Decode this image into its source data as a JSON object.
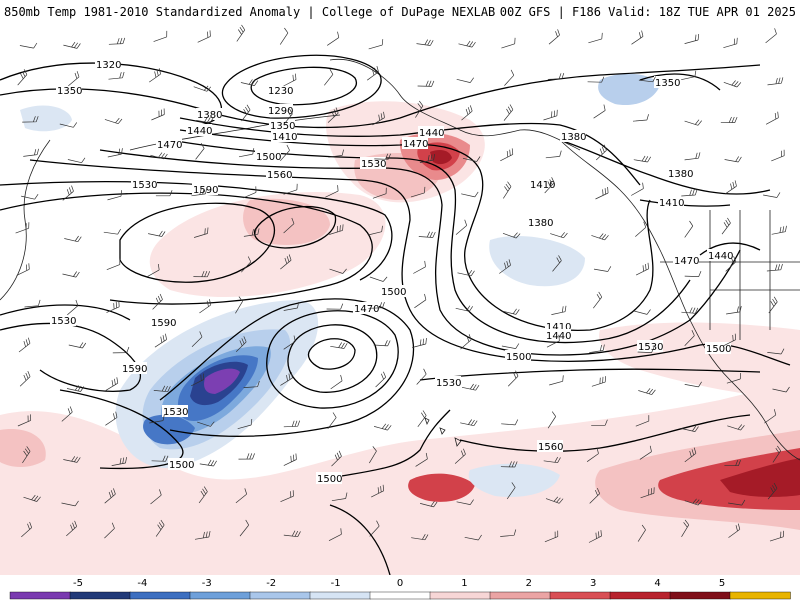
{
  "header": {
    "title": "850mb Temp 1981-2010 Standardized Anomaly | College of DuPage NEXLAB",
    "run": "00Z GFS | F186 Valid: 18Z TUE APR 01 2025"
  },
  "contour_labels": [
    "1230",
    "1290",
    "1320",
    "1350",
    "1350",
    "1350",
    "1380",
    "1380",
    "1380",
    "1380",
    "1410",
    "1410",
    "1410",
    "1410",
    "1440",
    "1440",
    "1440",
    "1440",
    "1470",
    "1470",
    "1470",
    "1470",
    "1500",
    "1500",
    "1500",
    "1500",
    "1500",
    "1500",
    "1530",
    "1530",
    "1530",
    "1530",
    "1530",
    "1530",
    "1560",
    "1560",
    "1590",
    "1590"
  ],
  "colorbar": {
    "ticks": [
      "-5",
      "-4",
      "-3",
      "-2",
      "-1",
      "0",
      "1",
      "2",
      "3",
      "4",
      "5"
    ],
    "colors": [
      "#7a3ab0",
      "#223a78",
      "#3d6fc0",
      "#6ea0da",
      "#a9c6ea",
      "#d6e4f4",
      "#ffffff",
      "#f7d6d6",
      "#eba4a4",
      "#d94f55",
      "#b8232e",
      "#7f0f19",
      "#e8b400"
    ]
  },
  "shading": {
    "negative_colors": [
      "#dbe6f3",
      "#b8cfec",
      "#7da9dd",
      "#4677c6",
      "#2a4290",
      "#7c3fb2"
    ],
    "positive_colors": [
      "#fbe4e4",
      "#f4c2c2",
      "#e98a8c",
      "#d2414a",
      "#a51b27",
      "#6e0d16"
    ]
  }
}
